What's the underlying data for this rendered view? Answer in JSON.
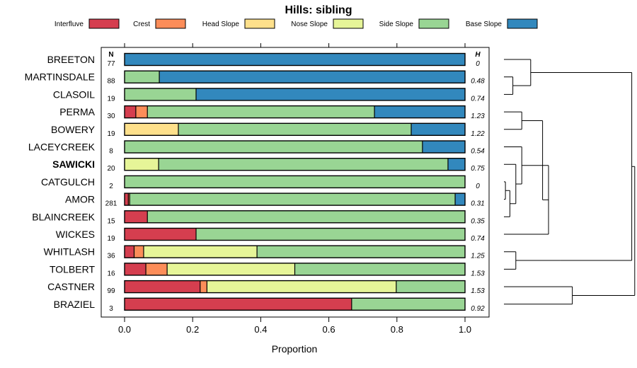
{
  "chart_data": {
    "type": "bar",
    "orientation": "horizontal",
    "stacked": true,
    "title": "Hills: sibling",
    "xlabel": "Proportion",
    "xlim": [
      0,
      1
    ],
    "xticks": [
      "0.0",
      "0.2",
      "0.4",
      "0.6",
      "0.8",
      "1.0"
    ],
    "n_header": "N",
    "h_header": "H",
    "legend": [
      {
        "name": "Interfluve",
        "color": "#d53e4f"
      },
      {
        "name": "Crest",
        "color": "#fc8d59"
      },
      {
        "name": "Head Slope",
        "color": "#fee08b"
      },
      {
        "name": "Nose Slope",
        "color": "#e6f598"
      },
      {
        "name": "Side Slope",
        "color": "#99d594"
      },
      {
        "name": "Base Slope",
        "color": "#3288bd"
      }
    ],
    "rows": [
      {
        "name": "BREETON",
        "bold": false,
        "n": "77",
        "h": "0",
        "values": [
          0,
          0,
          0,
          0,
          0,
          1.0
        ]
      },
      {
        "name": "MARTINSDALE",
        "bold": false,
        "n": "88",
        "h": "0.48",
        "values": [
          0,
          0,
          0,
          0,
          0.102,
          0.898
        ]
      },
      {
        "name": "CLASOIL",
        "bold": false,
        "n": "19",
        "h": "0.74",
        "values": [
          0,
          0,
          0,
          0,
          0.21,
          0.79
        ]
      },
      {
        "name": "PERMA",
        "bold": false,
        "n": "30",
        "h": "1.23",
        "values": [
          0.033,
          0.034,
          0,
          0,
          0.667,
          0.266
        ]
      },
      {
        "name": "BOWERY",
        "bold": false,
        "n": "19",
        "h": "1.22",
        "values": [
          0,
          0,
          0.158,
          0,
          0.684,
          0.158
        ]
      },
      {
        "name": "LACEYCREEK",
        "bold": false,
        "n": "8",
        "h": "0.54",
        "values": [
          0,
          0,
          0,
          0,
          0.875,
          0.125
        ]
      },
      {
        "name": "SAWICKI",
        "bold": true,
        "n": "20",
        "h": "0.75",
        "values": [
          0,
          0,
          0,
          0.1,
          0.85,
          0.05
        ]
      },
      {
        "name": "CATGULCH",
        "bold": false,
        "n": "2",
        "h": "0",
        "values": [
          0,
          0,
          0,
          0,
          1.0,
          0
        ]
      },
      {
        "name": "AMOR",
        "bold": false,
        "n": "281",
        "h": "0.31",
        "values": [
          0.011,
          0.004,
          0,
          0,
          0.956,
          0.029
        ]
      },
      {
        "name": "BLAINCREEK",
        "bold": false,
        "n": "15",
        "h": "0.35",
        "values": [
          0.067,
          0,
          0,
          0,
          0.933,
          0
        ]
      },
      {
        "name": "WICKES",
        "bold": false,
        "n": "19",
        "h": "0.74",
        "values": [
          0.21,
          0,
          0,
          0,
          0.79,
          0
        ]
      },
      {
        "name": "WHITLASH",
        "bold": false,
        "n": "36",
        "h": "1.25",
        "values": [
          0.028,
          0.028,
          0,
          0.333,
          0.611,
          0
        ]
      },
      {
        "name": "TOLBERT",
        "bold": false,
        "n": "16",
        "h": "1.53",
        "values": [
          0.0625,
          0.0625,
          0,
          0.375,
          0.5,
          0
        ]
      },
      {
        "name": "CASTNER",
        "bold": false,
        "n": "99",
        "h": "1.53",
        "values": [
          0.222,
          0.02,
          0,
          0.556,
          0.202,
          0
        ]
      },
      {
        "name": "BRAZIEL",
        "bold": false,
        "n": "3",
        "h": "0.92",
        "values": [
          0.667,
          0,
          0,
          0,
          0.333,
          0
        ]
      }
    ],
    "dendrogram": {
      "description": "hierarchical clustering of rows (leaf order matches rows)",
      "merges": [
        {
          "a": "MARTINSDALE",
          "b": "CLASOIL",
          "height": 0.03
        },
        {
          "a": "BREETON",
          "b": "MARTINSDALE+CLASOIL",
          "height": 0.09
        },
        {
          "a": "PERMA",
          "b": "BOWERY",
          "height": 0.06
        },
        {
          "a": "CATGULCH",
          "b": "AMOR",
          "height": 0.005
        },
        {
          "a": "CATGULCH+AMOR",
          "b": "BLAINCREEK",
          "height": 0.02
        },
        {
          "a": "SAWICKI",
          "b": "CATGULCH+AMOR+BLAINCREEK",
          "height": 0.04
        },
        {
          "a": "LACEYCREEK",
          "b": "SAWICKI+CATGULCH+AMOR+BLAINCREEK",
          "height": 0.06
        },
        {
          "a": "LACEYCREEK..BLAINCREEK",
          "b": "WICKES",
          "height": 0.15
        },
        {
          "a": "PERMA+BOWERY",
          "b": "LACEYCREEK..WICKES",
          "height": 0.13
        },
        {
          "a": "WHITLASH",
          "b": "TOLBERT",
          "height": 0.04
        },
        {
          "a": "PERMA..WICKES",
          "b": "WHITLASH+TOLBERT",
          "height": 0.19
        },
        {
          "a": "CASTNER",
          "b": "BRAZIEL",
          "height": 0.23
        },
        {
          "a": "BREETON..CLASOIL",
          "b": "PERMA..TOLBERT",
          "height": 0.43
        },
        {
          "a": "BREETON..TOLBERT",
          "b": "CASTNER+BRAZIEL",
          "height": 0.44
        }
      ]
    }
  }
}
